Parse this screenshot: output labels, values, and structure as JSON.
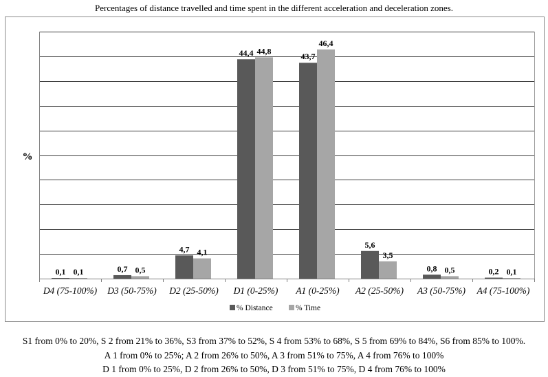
{
  "chart_data": {
    "type": "bar",
    "title": "Percentages of distance travelled and time spent in the different acceleration and deceleration zones.",
    "ylabel": "%",
    "xlabel": "",
    "ylim": [
      0,
      50
    ],
    "grid": true,
    "legend_position": "bottom",
    "categories": [
      "D4 (75-100%)",
      "D3 (50-75%)",
      "D2 (25-50%)",
      "D1 (0-25%)",
      "A1 (0-25%)",
      "A2  (25-50%)",
      "A3 (50-75%)",
      "A4 (75-100%)"
    ],
    "series": [
      {
        "name": "% Distance",
        "color": "#595959",
        "values": [
          0.1,
          0.7,
          4.7,
          44.4,
          43.7,
          5.6,
          0.8,
          0.2
        ],
        "labels": [
          "0,1",
          "0,7",
          "4,7",
          "44,4",
          "43,7",
          "5,6",
          "0,8",
          "0,2"
        ]
      },
      {
        "name": "% Time",
        "color": "#a6a6a6",
        "values": [
          0.1,
          0.5,
          4.1,
          44.8,
          46.4,
          3.5,
          0.5,
          0.1
        ],
        "labels": [
          "0,1",
          "0,5",
          "4,1",
          "44,8",
          "46,4",
          "3,5",
          "0,5",
          "0,1"
        ]
      }
    ]
  },
  "notes": [
    "S1 from 0% to 20%, S 2 from 21% to 36%, S3 from 37% to 52%, S 4 from 53% to 68%, S 5 from 69% to 84%, S6 from 85% to 100%.",
    "A 1 from 0% to 25%; A 2 from 26% to 50%, A 3 from 51% to 75%, A 4 from 76% to 100%",
    "D 1 from 0% to 25%, D 2 from 26% to 50%, D 3 from 51% to 75%, D 4 from 76% to 100%"
  ]
}
